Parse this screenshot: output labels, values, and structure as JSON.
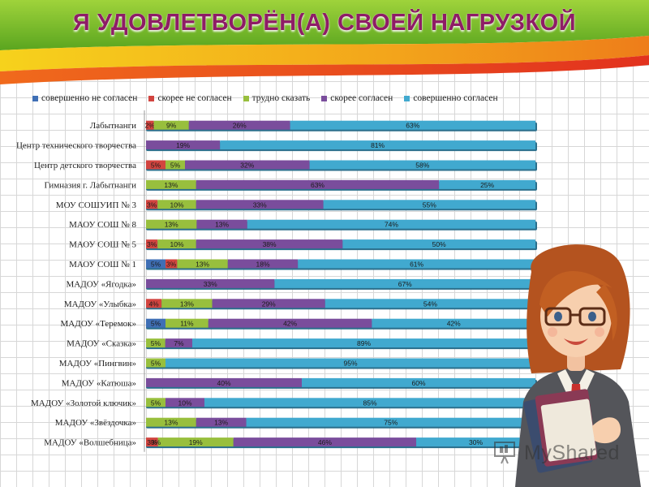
{
  "title": "Я УДОВЛЕТВОРЁН(А) СВОЕЙ НАГРУЗКОЙ",
  "watermark": "MyShared",
  "colors": {
    "title": "#8e1c66",
    "banner_top": "#7cc12a",
    "banner_mid": "#f5c518",
    "banner_bottom": "#e8441e"
  },
  "chart_data": {
    "type": "bar",
    "orientation": "horizontal",
    "stacked": "percent",
    "xlim": [
      0,
      100
    ],
    "grid": false,
    "legend_position": "top",
    "categories": [
      "Лабытнанги",
      "Центр технического творчества",
      "Центр детского творчества",
      "Гимназия г. Лабытнанги",
      "МОУ СОШУИП № 3",
      "МАОУ СОШ № 8",
      "МАОУ СОШ № 5",
      "МАОУ СОШ № 1",
      "МАДОУ «Ягодка»",
      "МАДОУ «Улыбка»",
      "МАДОУ «Теремок»",
      "МАДОУ «Сказка»",
      "МАДОУ «Пингвин»",
      "МАДОУ «Катюша»",
      "МАДОУ «Золотой ключик»",
      "МАДОУ «Звёздочка»",
      "МАДОУ «Волшебница»"
    ],
    "series": [
      {
        "name": "совершенно не согласен",
        "color": "#3f6fb5",
        "values": [
          0,
          0,
          0,
          0,
          0,
          0,
          0,
          5,
          0,
          0,
          5,
          0,
          0,
          0,
          0,
          0,
          0
        ],
        "labels": [
          "",
          "",
          "",
          "",
          "",
          "",
          "",
          "5%",
          "",
          "",
          "5%",
          "",
          "",
          "",
          "",
          "",
          ""
        ]
      },
      {
        "name": "скорее не согласен",
        "color": "#d2443f",
        "values": [
          2,
          0,
          5,
          0,
          3,
          0,
          3,
          3,
          0,
          4,
          0,
          0,
          0,
          0,
          0,
          0,
          3
        ],
        "labels": [
          "2%",
          "",
          "5%",
          "",
          "3%",
          "",
          "3%",
          "3%",
          "",
          "4%",
          "",
          "",
          "",
          "",
          "",
          "",
          "3%"
        ]
      },
      {
        "name": "трудно сказать",
        "color": "#98bf3d",
        "values": [
          9,
          0,
          5,
          13,
          10,
          13,
          10,
          13,
          0,
          13,
          11,
          5,
          5,
          0,
          5,
          13,
          19
        ],
        "labels": [
          "9%",
          "",
          "5%",
          "13%",
          "10%",
          "13%",
          "10%",
          "13%",
          "",
          "13%",
          "11%",
          "5%",
          "5%",
          "",
          "5%",
          "13%",
          "19%"
        ]
      },
      {
        "name": "скорее согласен",
        "color": "#7a4d9c",
        "values": [
          26,
          19,
          32,
          63,
          33,
          13,
          38,
          18,
          33,
          29,
          42,
          7,
          0,
          40,
          10,
          13,
          46
        ],
        "labels": [
          "26%",
          "19%",
          "32%",
          "63%",
          "33%",
          "13%",
          "38%",
          "18%",
          "33%",
          "29%",
          "42%",
          "7%",
          "",
          "40%",
          "10%",
          "13%",
          "46%"
        ]
      },
      {
        "name": "совершенно согласен",
        "color": "#41a9cf",
        "values": [
          63,
          81,
          58,
          25,
          55,
          74,
          50,
          61,
          67,
          54,
          42,
          89,
          95,
          60,
          85,
          75,
          30
        ],
        "labels": [
          "63%",
          "81%",
          "58%",
          "25%",
          "55%",
          "74%",
          "50%",
          "61%",
          "67%",
          "54%",
          "42%",
          "89%",
          "95%",
          "60%",
          "85%",
          "75%",
          "30%"
        ]
      }
    ],
    "mistake_note": "",
    "extra_labels": {
      "МАДОУ «Волшебница»": "3%"
    }
  }
}
